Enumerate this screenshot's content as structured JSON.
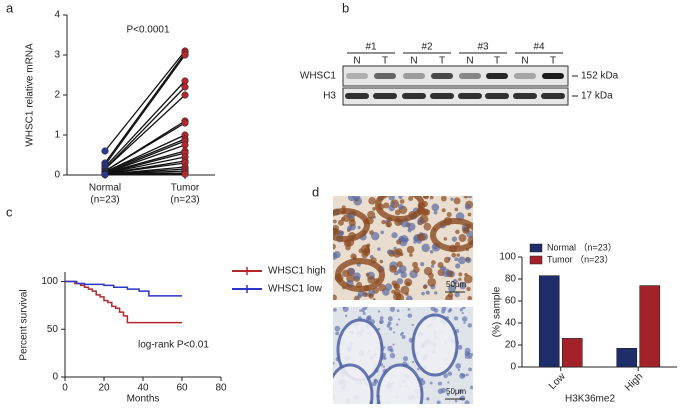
{
  "panels": [
    "a",
    "b",
    "c",
    "d"
  ],
  "chart_data": [
    {
      "type": "paired",
      "ylabel": "WHSC1 relative mRNA",
      "annotation": "P<0.0001",
      "categories": [
        "Normal",
        "Tumor"
      ],
      "category_counts": [
        "(n=23)",
        "(n=23)"
      ],
      "colors": [
        "#2b3990",
        "#b3282d"
      ],
      "ylim": [
        0,
        4
      ],
      "yticks": [
        0,
        1,
        2,
        3,
        4
      ],
      "pairs": [
        [
          0.6,
          3.1
        ],
        [
          0.3,
          3.05
        ],
        [
          0.25,
          3.0
        ],
        [
          0.2,
          2.35
        ],
        [
          0.15,
          2.2
        ],
        [
          0.15,
          2.0
        ],
        [
          0.1,
          1.35
        ],
        [
          0.1,
          1.3
        ],
        [
          0.08,
          1.0
        ],
        [
          0.08,
          0.9
        ],
        [
          0.05,
          0.85
        ],
        [
          0.05,
          0.75
        ],
        [
          0.05,
          0.6
        ],
        [
          0.04,
          0.55
        ],
        [
          0.04,
          0.45
        ],
        [
          0.03,
          0.35
        ],
        [
          0.03,
          0.3
        ],
        [
          0.02,
          0.2
        ],
        [
          0.02,
          0.15
        ],
        [
          0.02,
          0.1
        ],
        [
          0.01,
          0.05
        ],
        [
          0.01,
          0.05
        ],
        [
          0.01,
          0.02
        ]
      ]
    },
    {
      "type": "step",
      "ylabel": "Percent survival",
      "xlabel": "Months",
      "annotation": "log-rank P<0.01",
      "xlim": [
        0,
        80
      ],
      "xticks": [
        0,
        20,
        40,
        60,
        80
      ],
      "ylim": [
        0,
        110
      ],
      "yticks": [
        0,
        50,
        100
      ],
      "series": [
        {
          "name": "WHSC1 high",
          "color": "#b3282d",
          "x": [
            0,
            5,
            8,
            10,
            12,
            14,
            16,
            18,
            20,
            22,
            24,
            26,
            28,
            30,
            32,
            60
          ],
          "values": [
            100,
            98,
            96,
            94,
            92,
            90,
            86,
            84,
            80,
            78,
            74,
            72,
            68,
            64,
            57,
            57
          ]
        },
        {
          "name": "WHSC1 low",
          "color": "#2b35c8",
          "x": [
            0,
            6,
            10,
            20,
            25,
            32,
            38,
            43,
            60
          ],
          "values": [
            100,
            98,
            97,
            96,
            94,
            92,
            90,
            85,
            85
          ]
        }
      ]
    },
    {
      "type": "bar",
      "ylabel": "(%) sample",
      "xlabel": "H3K36me2",
      "categories": [
        "Low",
        "High"
      ],
      "ylim": [
        0,
        100
      ],
      "yticks": [
        0,
        20,
        40,
        60,
        80,
        100
      ],
      "series": [
        {
          "name": "Normal （n=23）",
          "color": "#1f2d6b",
          "values": [
            83,
            17
          ]
        },
        {
          "name": "Tumor （n=23）",
          "color": "#a3222a",
          "values": [
            26,
            74
          ]
        }
      ]
    }
  ],
  "blot": {
    "groups": [
      "#1",
      "#2",
      "#3",
      "#4"
    ],
    "lanes": [
      "N",
      "T",
      "N",
      "T",
      "N",
      "T",
      "N",
      "T"
    ],
    "rows": [
      "WHSC1",
      "H3"
    ],
    "sizes": [
      "152 kDa",
      "17 kDa"
    ]
  },
  "ihc": {
    "scale_labels": [
      "50μm",
      "50μm"
    ]
  }
}
